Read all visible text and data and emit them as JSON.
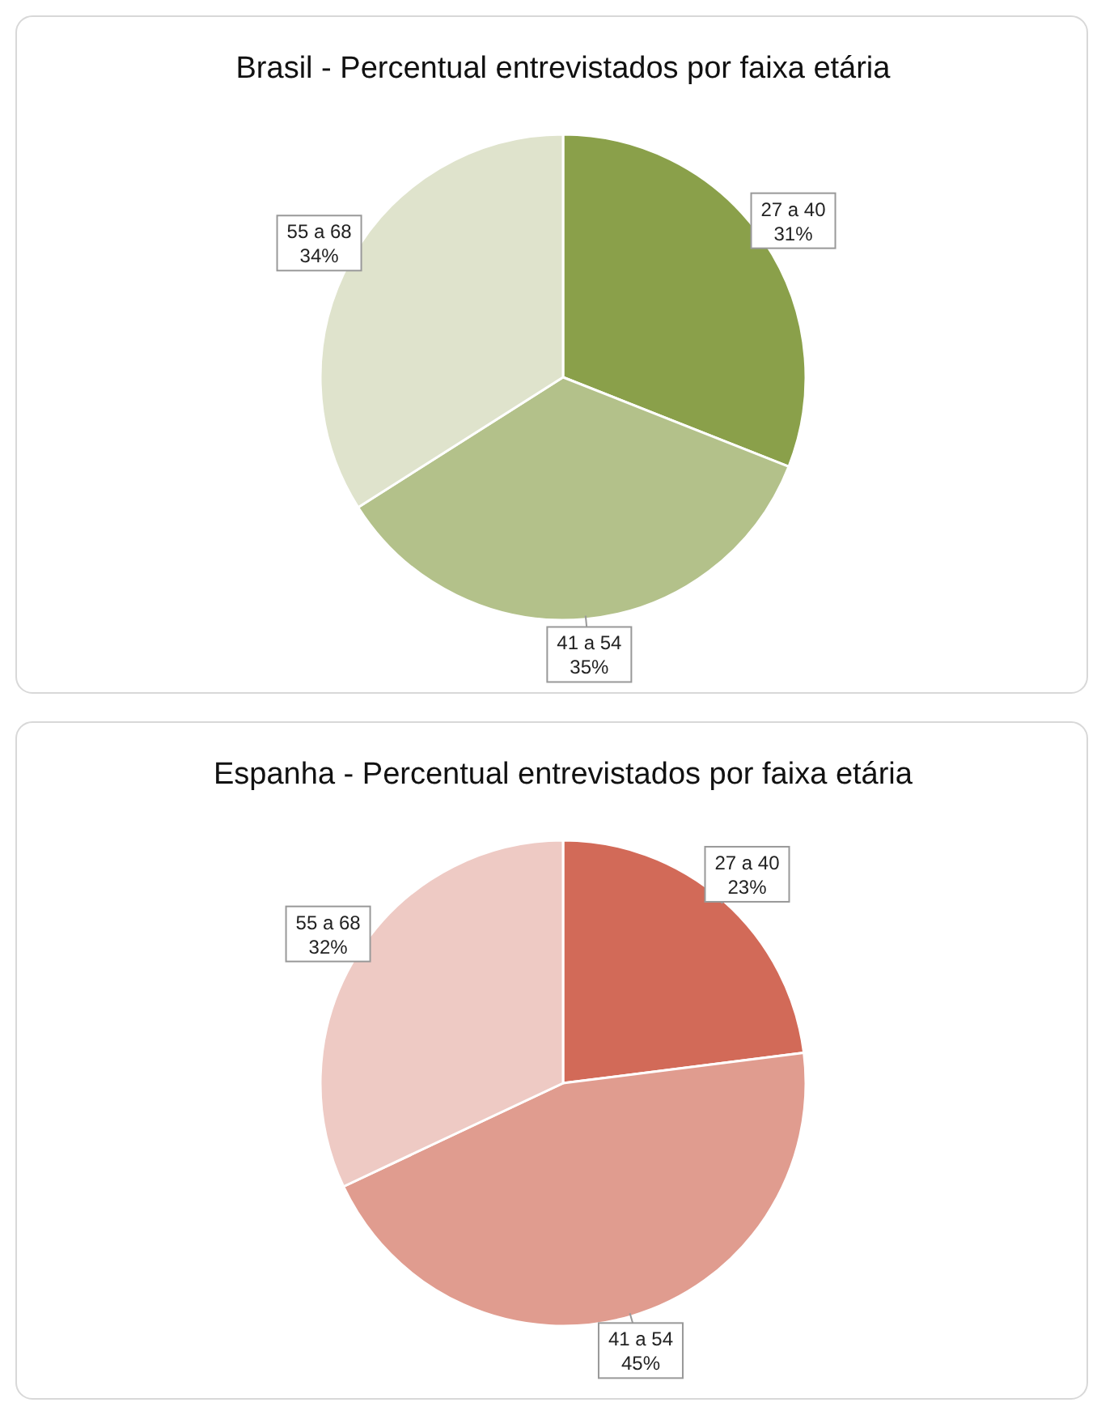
{
  "chart_data": [
    {
      "type": "pie",
      "title": "Brasil - Percentual entrevistados por faixa etária",
      "categories": [
        "27 a 40",
        "41 a 54",
        "55 a 68"
      ],
      "values": [
        31,
        35,
        34
      ],
      "colors": [
        "#8aa04a",
        "#b3c18a",
        "#dfe3cc"
      ],
      "value_labels": [
        "31%",
        "35%",
        "34%"
      ]
    },
    {
      "type": "pie",
      "title": "Espanha - Percentual entrevistados por faixa etária",
      "categories": [
        "27 a 40",
        "41 a 54",
        "55 a 68"
      ],
      "values": [
        23,
        45,
        32
      ],
      "colors": [
        "#d26a58",
        "#e09c8f",
        "#eecac4"
      ],
      "value_labels": [
        "23%",
        "45%",
        "32%"
      ]
    }
  ]
}
